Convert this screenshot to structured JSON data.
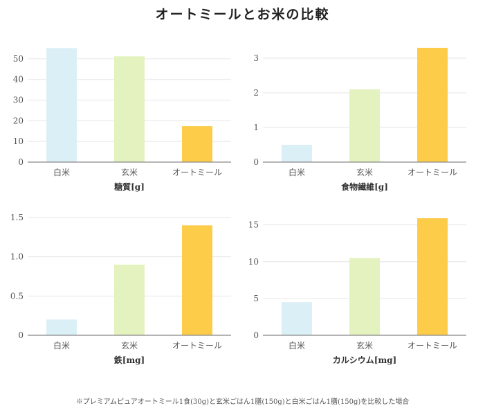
{
  "title": "オートミールとお米の比較",
  "footnote": "※プレミアムピュアオートミール1食(30g)と玄米ごはん1膳(150g)と白米ごはん1膳(150g)を比較した場合",
  "colors": {
    "white_rice": "#dbeff7",
    "brown_rice": "#e4f2c0",
    "oatmeal": "#fdcc49",
    "grid": "#e6e6e6",
    "axis": "#888888",
    "tick_text": "#555555"
  },
  "chart_data": [
    {
      "type": "bar",
      "categories": [
        "白米",
        "玄米",
        "オートミール"
      ],
      "values": [
        55.2,
        51.2,
        17.4
      ],
      "xlabel": "糖質[g]",
      "ylabel": "",
      "yticks": [
        "0",
        "10",
        "20",
        "30",
        "40",
        "50"
      ],
      "ylim": [
        0,
        57
      ],
      "grid": true
    },
    {
      "type": "bar",
      "categories": [
        "白米",
        "玄米",
        "オートミール"
      ],
      "values": [
        0.5,
        2.1,
        3.3
      ],
      "xlabel": "食物繊維[g]",
      "ylabel": "",
      "yticks": [
        "0",
        "1",
        "2",
        "3"
      ],
      "ylim": [
        0,
        3.4
      ],
      "grid": true
    },
    {
      "type": "bar",
      "categories": [
        "白米",
        "玄米",
        "オートミール"
      ],
      "values": [
        0.2,
        0.9,
        1.4
      ],
      "xlabel": "鉄[mg]",
      "ylabel": "",
      "yticks": [
        "0",
        "0.5",
        "1.0",
        "1.5"
      ],
      "ylim": [
        0,
        1.5
      ],
      "grid": true
    },
    {
      "type": "bar",
      "categories": [
        "白米",
        "玄米",
        "オートミール"
      ],
      "values": [
        4.5,
        10.5,
        15.9
      ],
      "xlabel": "カルシウム[mg]",
      "ylabel": "",
      "yticks": [
        "0",
        "5",
        "10",
        "15"
      ],
      "ylim": [
        0,
        16
      ],
      "grid": true
    }
  ]
}
